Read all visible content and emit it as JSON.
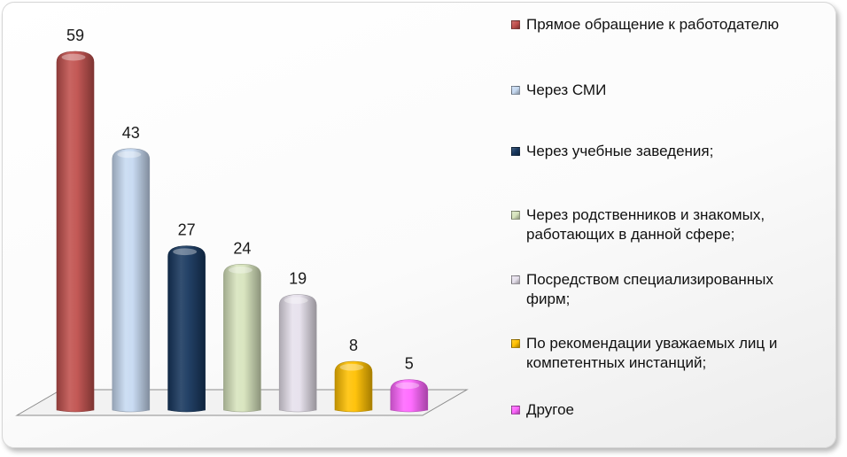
{
  "chart_data": {
    "type": "bar",
    "categories": [
      "Прямое обращение к работодателю",
      "Через СМИ",
      "Через учебные заведения;",
      "Через родственников и знакомых, работающих в данной сфере;",
      "Посредством специализированных фирм;",
      "По рекомендации уважаемых лиц и компетентных инстанций;",
      "Другое"
    ],
    "values": [
      59,
      43,
      27,
      24,
      19,
      8,
      5
    ],
    "value_labels": [
      "59",
      "43",
      "27",
      "24",
      "19",
      "8",
      "5"
    ],
    "colors": [
      "#c0504d",
      "#c6d9f1",
      "#17375e",
      "#d7e4bd",
      "#e6e0ec",
      "#ffc000",
      "#ff66ff"
    ],
    "ylim": [
      0,
      59
    ],
    "grid": false,
    "legend_position": "right",
    "style": "3d-cylinder"
  }
}
